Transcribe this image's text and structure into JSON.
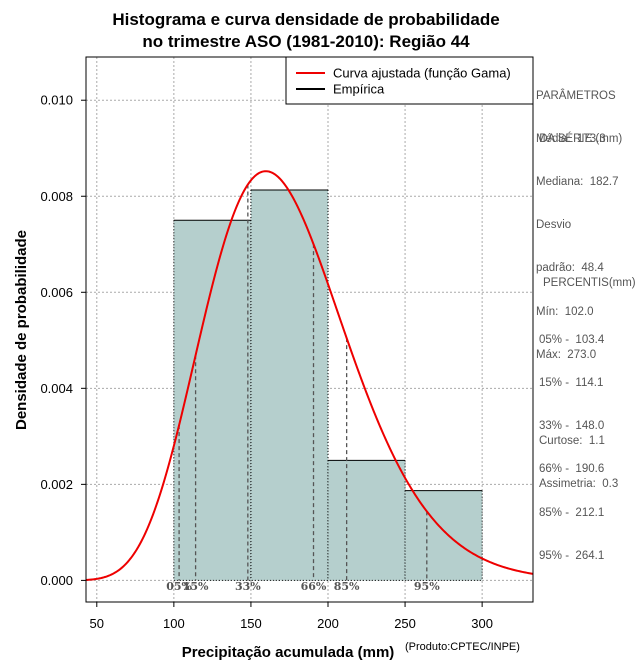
{
  "chart_data": {
    "type": "histogram",
    "title": [
      "Histograma e curva densidade de probabilidade",
      "no trimestre ASO (1981-2010): Região 44"
    ],
    "xlabel": "Precipitação acumulada (mm)",
    "ylabel": "Densidade de probabilidade",
    "credit": "(Produto:CPTEC/INPE)",
    "xlim": [
      43,
      333
    ],
    "ylim": [
      -0.00045,
      0.0109
    ],
    "xticks": [
      50,
      100,
      150,
      200,
      250,
      300
    ],
    "yticks": [
      0.0,
      0.002,
      0.004,
      0.006,
      0.008,
      0.01
    ],
    "ytick_labels": [
      "0.000",
      "0.002",
      "0.004",
      "0.006",
      "0.008",
      "0.010"
    ],
    "grid": true,
    "bins": [
      {
        "x0": 100,
        "x1": 150,
        "density": 0.0075
      },
      {
        "x0": 150,
        "x1": 200,
        "density": 0.00813
      },
      {
        "x0": 200,
        "x1": 250,
        "density": 0.0025
      },
      {
        "x0": 250,
        "x1": 300,
        "density": 0.00187
      }
    ],
    "gamma_fit": {
      "shape": 12.8,
      "rate": 0.0739
    },
    "legend": {
      "position": "top-right",
      "entries": [
        {
          "label": "Curva ajustada (função Gama)",
          "color": "#ee0000"
        },
        {
          "label": "Empírica",
          "color": "#000000"
        }
      ]
    },
    "percentile_markers": [
      {
        "label": "05%",
        "value": 103.4
      },
      {
        "label": "15%",
        "value": 114.1
      },
      {
        "label": "33%",
        "value": 148.0
      },
      {
        "label": "66%",
        "value": 190.6
      },
      {
        "label": "85%",
        "value": 212.1
      },
      {
        "label": "95%",
        "value": 264.1
      }
    ]
  },
  "side_panel": {
    "params_title": [
      "PARÂMETROS",
      " DA SÉRIE (mm)"
    ],
    "params": [
      "Média:  173.3",
      "Mediana:  182.7",
      "Desvio",
      "padrão:  48.4",
      "Mín:  102.0",
      "Máx:  273.0"
    ],
    "percentis_title": "PERCENTIS(mm)",
    "percentis": [
      "05% -  103.4",
      "15% -  114.1",
      "33% -  148.0",
      "66% -  190.6",
      "85% -  212.1",
      "95% -  264.1"
    ],
    "stats": [
      "Curtose:  1.1",
      "Assimetria:  0.3"
    ]
  },
  "colors": {
    "bar_fill": "#b5cfcd",
    "curve": "#ee0000",
    "grid": "#aaaaaa",
    "marker": "#555555"
  }
}
